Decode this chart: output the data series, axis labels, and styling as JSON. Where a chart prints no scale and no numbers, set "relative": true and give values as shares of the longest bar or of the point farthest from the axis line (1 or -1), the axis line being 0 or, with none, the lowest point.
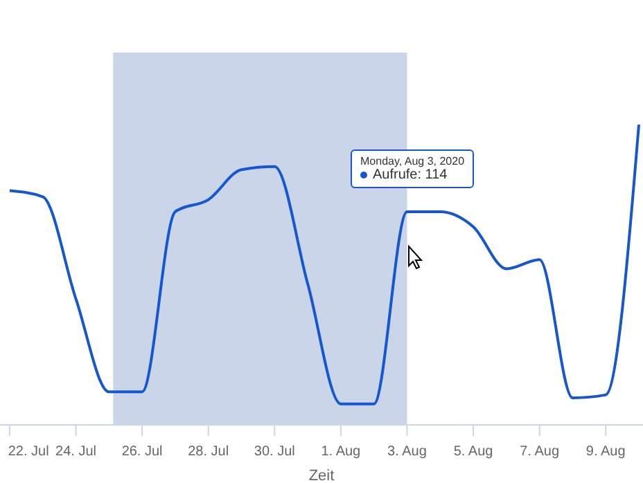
{
  "chart_data": {
    "type": "line",
    "relative": true,
    "xlabel": "Zeit",
    "x": [
      "2020-07-22",
      "2020-07-23",
      "2020-07-24",
      "2020-07-25",
      "2020-07-26",
      "2020-07-27",
      "2020-07-28",
      "2020-07-29",
      "2020-07-30",
      "2020-07-31",
      "2020-08-01",
      "2020-08-02",
      "2020-08-03",
      "2020-08-04",
      "2020-08-05",
      "2020-08-06",
      "2020-08-07",
      "2020-08-08",
      "2020-08-09",
      "2020-08-10"
    ],
    "series": [
      {
        "color": "#1557d0",
        "values": [
          0.78,
          0.76,
          0.42,
          0.11,
          0.11,
          0.71,
          0.75,
          0.85,
          0.86,
          0.47,
          0.07,
          0.07,
          0.71,
          0.71,
          0.66,
          0.52,
          0.55,
          0.09,
          0.1,
          1
        ]
      }
    ],
    "xlim": [
      "2020-07-21T17:00",
      "2020-08-10T03:00"
    ],
    "xticks": [
      {
        "value": "2020-07-22",
        "label": "22. Jul"
      },
      {
        "value": "2020-07-24",
        "label": "24. Jul"
      },
      {
        "value": "2020-07-26",
        "label": "26. Jul"
      },
      {
        "value": "2020-07-28",
        "label": "28. Jul"
      },
      {
        "value": "2020-07-30",
        "label": "30. Jul"
      },
      {
        "value": "2020-08-01",
        "label": "1. Aug"
      },
      {
        "value": "2020-08-03",
        "label": "3. Aug"
      },
      {
        "value": "2020-08-05",
        "label": "5. Aug"
      },
      {
        "value": "2020-08-07",
        "label": "7. Aug"
      },
      {
        "value": "2020-08-09",
        "label": "9. Aug"
      }
    ],
    "bands": [
      {
        "axis": "x",
        "from": "2020-07-25T03:00",
        "to": "2020-08-03",
        "color": "#cad5ea"
      }
    ],
    "annotations": [
      "Monday, Aug 3, 2020",
      "Aufrufe: 114"
    ],
    "marker": "none",
    "line_style": "solid"
  }
}
